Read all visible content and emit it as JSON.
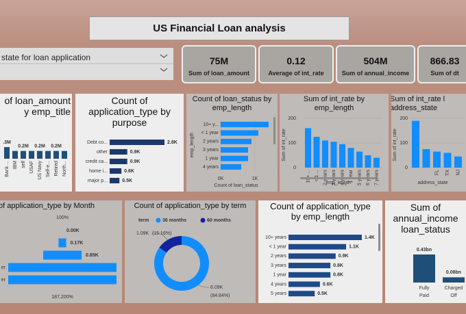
{
  "header": {
    "title": "US Financial Loan analysis"
  },
  "slicer": {
    "label": "state for loan application"
  },
  "kpis": [
    {
      "value": "75M",
      "label": "Sum of loan_amount"
    },
    {
      "value": "0.12",
      "label": "Average of int_rate"
    },
    {
      "value": "504M",
      "label": "Sum of annual_income"
    },
    {
      "value": "866.83",
      "label": "Sum of dt"
    }
  ],
  "charts": [
    {
      "type": "vbar",
      "title": [
        "of loan_amount",
        "y emp_title"
      ],
      "categories": [
        "Bank ...",
        "IBM",
        "self",
        "USAF",
        "US Navy",
        "Self-e...",
        "Retired",
        "North..."
      ],
      "values": [
        0.3,
        0.2,
        0.2,
        0.2,
        0.2,
        0.2,
        0.2,
        0.2
      ],
      "value_labels": [
        ".3M",
        null,
        "0.2M",
        null,
        "0.2M",
        null,
        "0.2M",
        null
      ],
      "color": "#1f4e79"
    },
    {
      "type": "hbar",
      "title": [
        "Count of",
        "application_type by",
        "purpose"
      ],
      "categories": [
        "Debt co...",
        "other",
        "credit ca...",
        "home i...",
        "major p..."
      ],
      "values": [
        2.8,
        0.9,
        0.9,
        0.6,
        0.5
      ],
      "value_labels": [
        "2.8K",
        "0.9K",
        "0.9K",
        "0.6K",
        "0.5K"
      ],
      "color": "#1b3a6b"
    },
    {
      "type": "hbar",
      "title": [
        "Count of loan_status by",
        "emp_length"
      ],
      "categories": [
        "10+ y...",
        "< 1 year",
        "2 years",
        "3 years",
        "1 year",
        "4 years"
      ],
      "values": [
        1.4,
        1.1,
        0.9,
        0.8,
        0.8,
        0.6
      ],
      "color": "#118dff",
      "xlim": [
        0,
        1.5
      ],
      "xticks": [
        {
          "value": 0,
          "label": "0K"
        },
        {
          "value": 1,
          "label": "1K"
        }
      ],
      "xlabel": "Count of loan_status",
      "ylabel": "emp_length"
    },
    {
      "type": "vbar",
      "title": [
        "Sum of int_rate by",
        "emp_length"
      ],
      "categories": [
        "10+ ...",
        "< 1 ...",
        "2 years",
        "3 years",
        "4 years",
        "1 year",
        "5 years",
        "6 years",
        "7 years"
      ],
      "values": [
        160,
        125,
        110,
        105,
        95,
        80,
        65,
        50,
        40
      ],
      "color": "#118dff",
      "ylim": [
        0,
        200
      ],
      "yticks": [
        0,
        100,
        200
      ],
      "xlabel": "emp_length",
      "ylabel": "Sum of int_rate"
    },
    {
      "type": "vbar",
      "title": [
        "Sum of int_rate l",
        "address_state"
      ],
      "categories": [
        null,
        null,
        "FL",
        "TX",
        "NJ"
      ],
      "values": [
        190,
        75,
        65,
        60,
        45
      ],
      "color": "#118dff",
      "ylim": [
        0,
        200
      ],
      "yticks": [
        0,
        100,
        200
      ],
      "xlabel": "address_state",
      "ylabel": "Sum of int_rate"
    },
    {
      "type": "funnel",
      "title": [
        "of application_type by Month"
      ],
      "categories": [
        null,
        null,
        null,
        "er",
        "er"
      ],
      "values": [
        0.0,
        0.17,
        0.85,
        2.4,
        2.4
      ],
      "value_labels": [
        "0.00K",
        "0.17K",
        "0.85K",
        null,
        null
      ],
      "top_label": "100%",
      "bottom_label": "187,200%",
      "color": "#118dff"
    },
    {
      "type": "donut",
      "title": [
        "Count of application_type by term"
      ],
      "legend_title": "term",
      "series": [
        {
          "name": "36 months",
          "color": "#118dff",
          "value": 6.09,
          "value_label": "6.09K",
          "percent": 84.84,
          "percent_label": "(84.84%)"
        },
        {
          "name": "60 months",
          "color": "#12239e",
          "value": 1.09,
          "value_label": "1.09K",
          "percent": 15.16,
          "percent_label": "(15.16%)"
        }
      ]
    },
    {
      "type": "hbar",
      "title": [
        "Count of application_type",
        "by emp_length"
      ],
      "categories": [
        "10+ years",
        "< 1 year",
        "2 years",
        "3 years",
        "1 year",
        "4 years",
        "5 years"
      ],
      "values": [
        1.4,
        1.1,
        0.9,
        0.8,
        0.8,
        0.6,
        0.5
      ],
      "value_labels": [
        "1.4K",
        "1.1K",
        "0.9K",
        "0.8K",
        "0.8K",
        "0.6K",
        "0.5K"
      ],
      "color": "#1e4a8a"
    },
    {
      "type": "vbar",
      "title": [
        "Sum of",
        "annual_income",
        "loan_status"
      ],
      "categories": [
        "Fully Paid",
        "Charged Off"
      ],
      "values": [
        0.43,
        0.08
      ],
      "value_labels": [
        "0.43bn",
        "0.08bn"
      ],
      "color": "#1f4e79"
    }
  ]
}
